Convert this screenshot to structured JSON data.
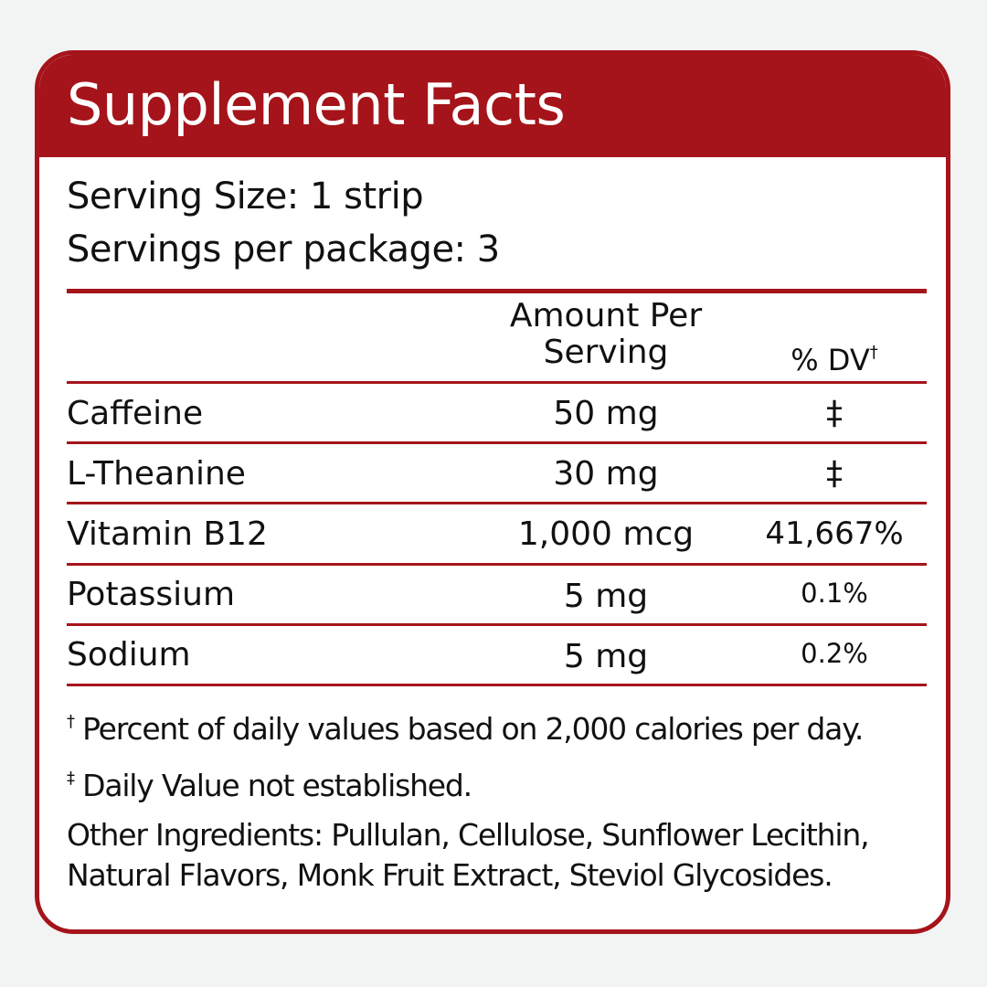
{
  "title": "Supplement Facts",
  "serving_size": "Serving Size: 1 strip",
  "servings_per_package": "Servings per package: 3",
  "columns": {
    "amount_line1": "Amount Per",
    "amount_line2": "Serving",
    "dv": "% DV",
    "dv_mark": "†"
  },
  "rows": [
    {
      "name": "Caffeine",
      "amount": "50 mg",
      "dv": "‡"
    },
    {
      "name": "L-Theanine",
      "amount": "30 mg",
      "dv": "‡"
    },
    {
      "name": "Vitamin B12",
      "amount": "1,000 mcg",
      "dv": "41,667%"
    },
    {
      "name": "Potassium",
      "amount": "5 mg",
      "dv": "0.1%"
    },
    {
      "name": "Sodium",
      "amount": "5 mg",
      "dv": "0.2%"
    }
  ],
  "footnotes": {
    "dagger_mark": "†",
    "dagger": "Percent of daily values based on 2,000 calories per day.",
    "ddagger_mark": "‡",
    "ddagger": "Daily Value not established.",
    "other_line1": "Other Ingredients: Pullulan, Cellulose, Sunflower Lecithin,",
    "other_line2": "Natural Flavors, Monk Fruit Extract, Steviol Glycosides."
  },
  "colors": {
    "accent": "#a5141a",
    "background": "#f2f3f3"
  }
}
